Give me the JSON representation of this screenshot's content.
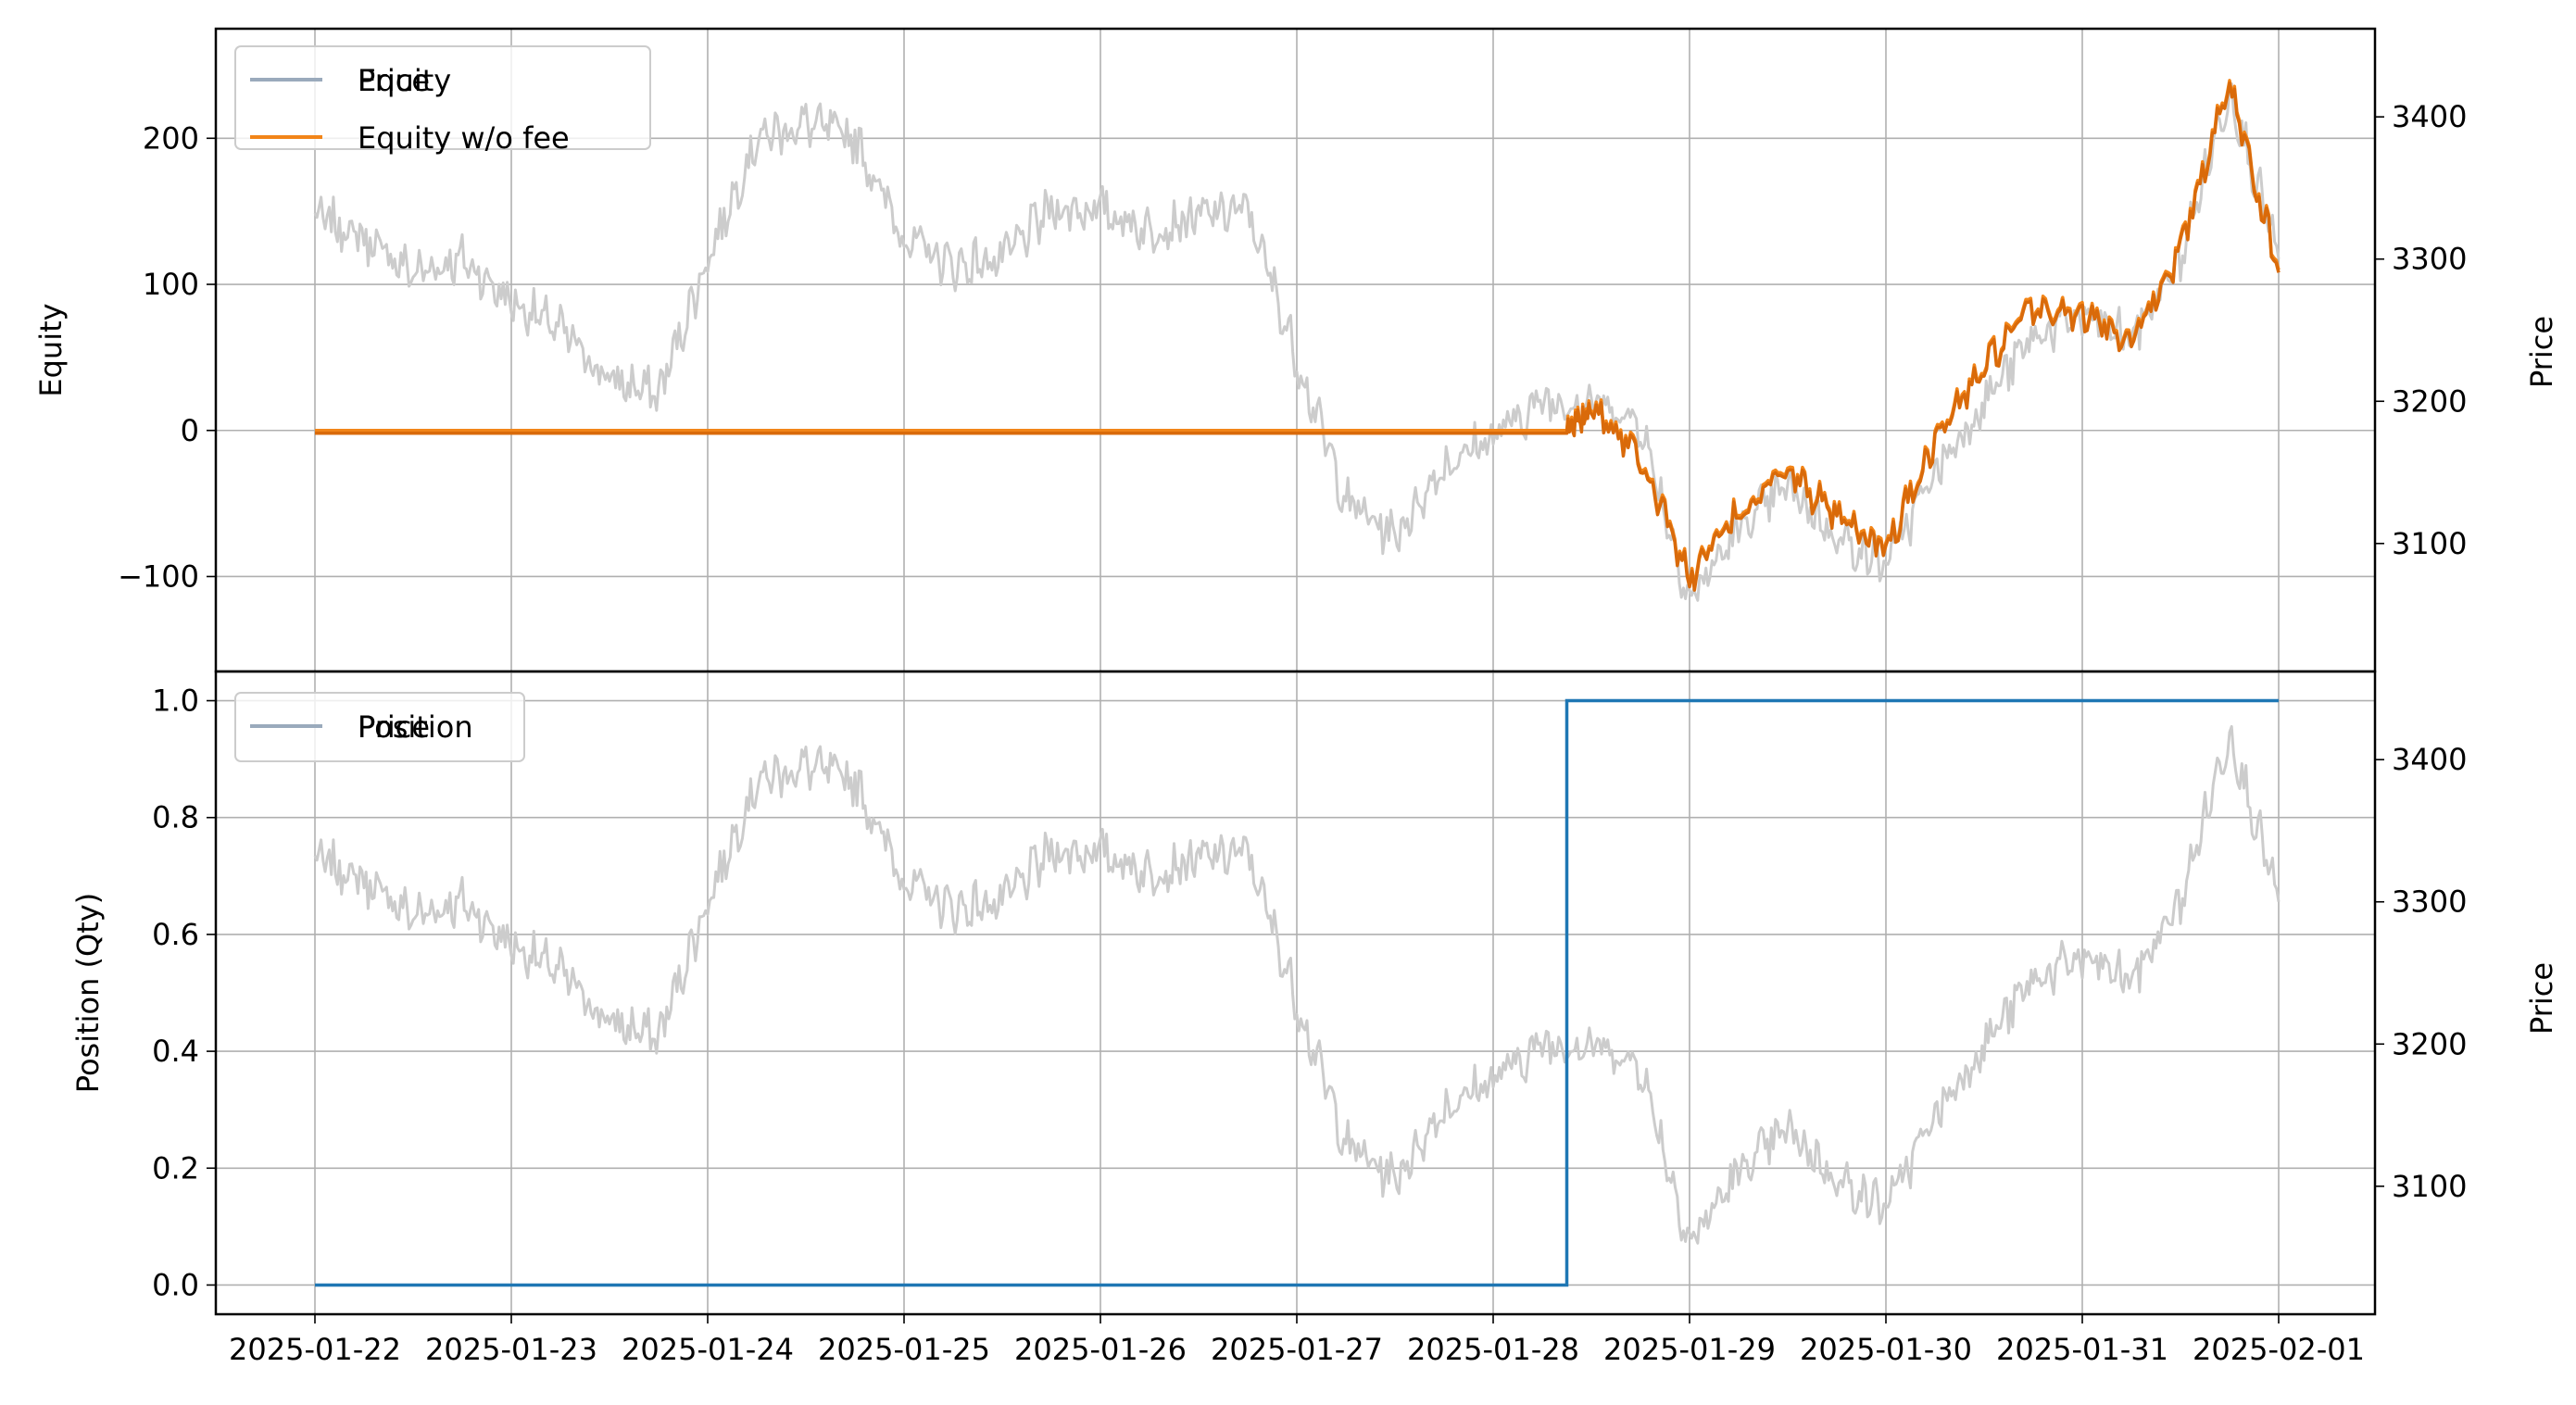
{
  "colors": {
    "price_line": "#cccccc",
    "price_legend": "#9aaabc",
    "equity": "#f28518",
    "equity_dark": "#d96a0a",
    "position": "#1f77b4",
    "grid": "#b0b0b0",
    "axes": "#000000"
  },
  "chart_data": [
    {
      "type": "line",
      "title": "",
      "xlabel": "",
      "ylabel": "Equity",
      "y2label": "Price",
      "ylim": [
        -165,
        275
      ],
      "y2lim": [
        3010,
        3462
      ],
      "yticks": [
        -100,
        0,
        100,
        200
      ],
      "ytick_labels": [
        "−100",
        "0",
        "100",
        "200"
      ],
      "y2ticks": [
        3100,
        3200,
        3300,
        3400
      ],
      "y2tick_labels": [
        "3100",
        "3200",
        "3300",
        "3400"
      ],
      "grid": true,
      "legend_position": "upper-left",
      "legend": [
        "Price",
        "Equity",
        "Equity w/o fee"
      ],
      "series": [
        {
          "name": "Price",
          "axis": "right",
          "x": [
            "2025-01-22 00:00",
            "2025-01-22 06:00",
            "2025-01-22 12:00",
            "2025-01-22 18:00",
            "2025-01-23 00:00",
            "2025-01-23 06:00",
            "2025-01-23 12:00",
            "2025-01-23 18:00",
            "2025-01-24 00:00",
            "2025-01-24 06:00",
            "2025-01-24 12:00",
            "2025-01-24 18:00",
            "2025-01-25 00:00",
            "2025-01-25 06:00",
            "2025-01-25 12:00",
            "2025-01-25 18:00",
            "2025-01-26 00:00",
            "2025-01-26 06:00",
            "2025-01-26 12:00",
            "2025-01-26 18:00",
            "2025-01-27 00:00",
            "2025-01-27 06:00",
            "2025-01-27 12:00",
            "2025-01-27 18:00",
            "2025-01-28 00:00",
            "2025-01-28 06:00",
            "2025-01-28 12:00",
            "2025-01-28 18:00",
            "2025-01-29 00:00",
            "2025-01-29 06:00",
            "2025-01-29 12:00",
            "2025-01-29 18:00",
            "2025-01-30 00:00",
            "2025-01-30 06:00",
            "2025-01-30 12:00",
            "2025-01-30 18:00",
            "2025-01-31 00:00",
            "2025-01-31 06:00",
            "2025-01-31 12:00",
            "2025-01-31 18:00",
            "2025-02-01 00:00"
          ],
          "values": [
            3330,
            3315,
            3290,
            3300,
            3270,
            3250,
            3215,
            3205,
            3300,
            3385,
            3395,
            3385,
            3315,
            3295,
            3300,
            3335,
            3335,
            3320,
            3330,
            3335,
            3230,
            3130,
            3105,
            3155,
            3175,
            3200,
            3200,
            3185,
            3060,
            3110,
            3140,
            3105,
            3085,
            3150,
            3200,
            3245,
            3260,
            3245,
            3300,
            3420,
            3300
          ]
        },
        {
          "name": "Equity",
          "axis": "left",
          "x": [
            "2025-01-22 00:00",
            "2025-01-28 09:00",
            "2025-01-28 12:00",
            "2025-01-28 18:00",
            "2025-01-29 00:00",
            "2025-01-29 06:00",
            "2025-01-29 12:00",
            "2025-01-29 18:00",
            "2025-01-30 00:00",
            "2025-01-30 06:00",
            "2025-01-30 12:00",
            "2025-01-30 18:00",
            "2025-01-31 00:00",
            "2025-01-31 06:00",
            "2025-01-31 12:00",
            "2025-01-31 18:00",
            "2025-02-01 00:00"
          ],
          "values": [
            0,
            0,
            20,
            -15,
            -100,
            -55,
            -25,
            -60,
            -80,
            -5,
            45,
            85,
            80,
            65,
            125,
            240,
            110
          ]
        },
        {
          "name": "Equity w/o fee",
          "axis": "left",
          "x": [
            "2025-01-22 00:00",
            "2025-01-28 09:00",
            "2025-01-28 12:00",
            "2025-01-28 18:00",
            "2025-01-29 00:00",
            "2025-01-29 06:00",
            "2025-01-29 12:00",
            "2025-01-29 18:00",
            "2025-01-30 00:00",
            "2025-01-30 06:00",
            "2025-01-30 12:00",
            "2025-01-30 18:00",
            "2025-01-31 00:00",
            "2025-01-31 06:00",
            "2025-01-31 12:00",
            "2025-01-31 18:00",
            "2025-02-01 00:00"
          ],
          "values": [
            0,
            0,
            20,
            -15,
            -100,
            -55,
            -25,
            -60,
            -80,
            -5,
            45,
            85,
            80,
            65,
            125,
            240,
            110
          ]
        }
      ]
    },
    {
      "type": "line",
      "title": "",
      "xlabel": "",
      "ylabel": "Position (Qty)",
      "y2label": "Price",
      "ylim": [
        -0.05,
        1.05
      ],
      "y2lim": [
        3010,
        3462
      ],
      "yticks": [
        0.0,
        0.2,
        0.4,
        0.6,
        0.8,
        1.0
      ],
      "ytick_labels": [
        "0.0",
        "0.2",
        "0.4",
        "0.6",
        "0.8",
        "1.0"
      ],
      "y2ticks": [
        3100,
        3200,
        3300,
        3400
      ],
      "y2tick_labels": [
        "3100",
        "3200",
        "3300",
        "3400"
      ],
      "xticks": [
        "2025-01-22",
        "2025-01-23",
        "2025-01-24",
        "2025-01-25",
        "2025-01-26",
        "2025-01-27",
        "2025-01-28",
        "2025-01-29",
        "2025-01-30",
        "2025-01-31",
        "2025-02-01"
      ],
      "grid": true,
      "legend_position": "upper-left",
      "legend": [
        "Price",
        "Position"
      ],
      "series": [
        {
          "name": "Price",
          "axis": "right",
          "x": [
            "2025-01-22 00:00",
            "2025-01-22 06:00",
            "2025-01-22 12:00",
            "2025-01-22 18:00",
            "2025-01-23 00:00",
            "2025-01-23 06:00",
            "2025-01-23 12:00",
            "2025-01-23 18:00",
            "2025-01-24 00:00",
            "2025-01-24 06:00",
            "2025-01-24 12:00",
            "2025-01-24 18:00",
            "2025-01-25 00:00",
            "2025-01-25 06:00",
            "2025-01-25 12:00",
            "2025-01-25 18:00",
            "2025-01-26 00:00",
            "2025-01-26 06:00",
            "2025-01-26 12:00",
            "2025-01-26 18:00",
            "2025-01-27 00:00",
            "2025-01-27 06:00",
            "2025-01-27 12:00",
            "2025-01-27 18:00",
            "2025-01-28 00:00",
            "2025-01-28 06:00",
            "2025-01-28 12:00",
            "2025-01-28 18:00",
            "2025-01-29 00:00",
            "2025-01-29 06:00",
            "2025-01-29 12:00",
            "2025-01-29 18:00",
            "2025-01-30 00:00",
            "2025-01-30 06:00",
            "2025-01-30 12:00",
            "2025-01-30 18:00",
            "2025-01-31 00:00",
            "2025-01-31 06:00",
            "2025-01-31 12:00",
            "2025-01-31 18:00",
            "2025-02-01 00:00"
          ],
          "values": [
            3330,
            3315,
            3290,
            3300,
            3270,
            3250,
            3215,
            3205,
            3300,
            3385,
            3395,
            3385,
            3315,
            3295,
            3300,
            3335,
            3335,
            3320,
            3330,
            3335,
            3230,
            3130,
            3105,
            3155,
            3175,
            3200,
            3200,
            3185,
            3060,
            3110,
            3140,
            3105,
            3085,
            3150,
            3200,
            3245,
            3260,
            3245,
            3300,
            3420,
            3300
          ]
        },
        {
          "name": "Position",
          "axis": "left",
          "step": true,
          "x": [
            "2025-01-22 00:00",
            "2025-01-28 09:00",
            "2025-01-28 09:00",
            "2025-02-01 00:00"
          ],
          "values": [
            0,
            0,
            1,
            1
          ]
        }
      ]
    }
  ]
}
